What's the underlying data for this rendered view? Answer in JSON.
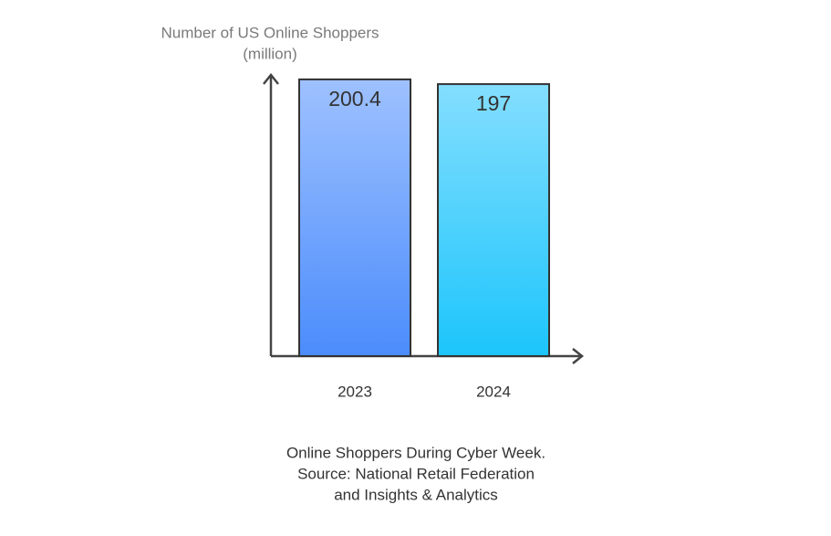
{
  "chart_data": {
    "type": "bar",
    "y_label": [
      "Number of US Online Shoppers",
      "(million)"
    ],
    "categories": [
      "2023",
      "2024"
    ],
    "values": [
      200.4,
      197
    ],
    "colors": [
      [
        "#9ec1fe",
        "#4b8cfc"
      ],
      [
        "#84defe",
        "#1cc5fb"
      ]
    ],
    "ylim": [
      0,
      205
    ],
    "caption": [
      "Online Shoppers During Cyber Week.",
      "Source: National Retail Federation",
      "and Insights & Analytics"
    ]
  }
}
